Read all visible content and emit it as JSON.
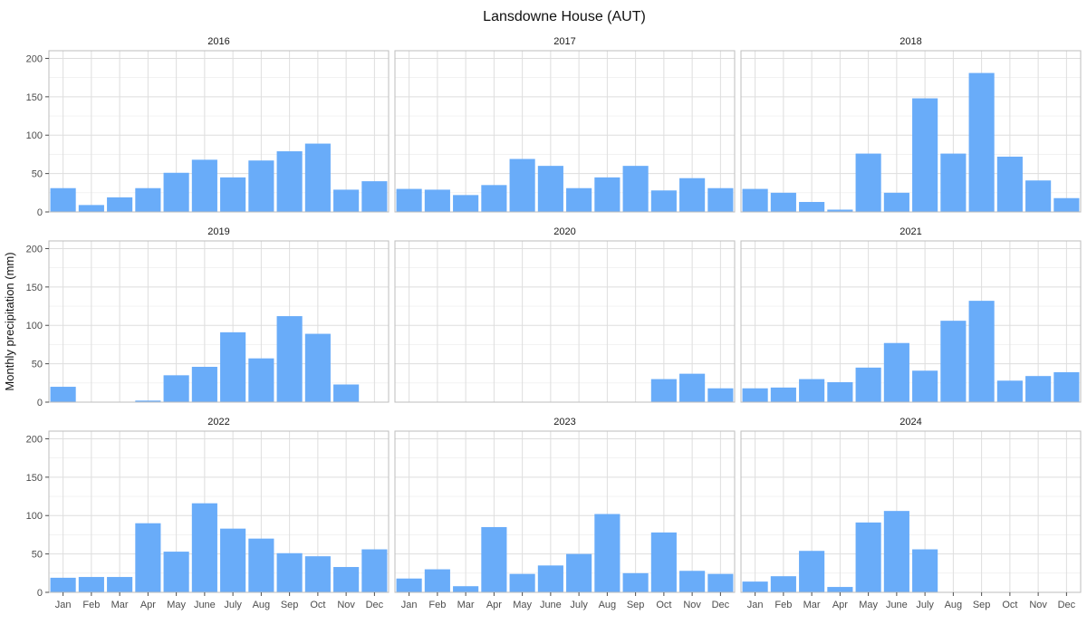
{
  "chart_data": {
    "type": "bar",
    "title": "Lansdowne House (AUT)",
    "xlabel": "",
    "ylabel": "Monthly precipitation (mm)",
    "ylim": [
      0,
      210
    ],
    "yticks": [
      0,
      50,
      100,
      150,
      200
    ],
    "grid": true,
    "bar_color": "#69acf9",
    "categories": [
      "Jan",
      "Feb",
      "Mar",
      "Apr",
      "May",
      "June",
      "July",
      "Aug",
      "Sep",
      "Oct",
      "Nov",
      "Dec"
    ],
    "panels": [
      {
        "name": "2016",
        "values": [
          31,
          9,
          19,
          31,
          51,
          68,
          45,
          67,
          79,
          89,
          29,
          40
        ]
      },
      {
        "name": "2017",
        "values": [
          30,
          29,
          22,
          35,
          69,
          60,
          31,
          45,
          60,
          28,
          44,
          31
        ]
      },
      {
        "name": "2018",
        "values": [
          30,
          25,
          13,
          3,
          76,
          25,
          148,
          76,
          181,
          72,
          41,
          18
        ]
      },
      {
        "name": "2019",
        "values": [
          20,
          null,
          null,
          2,
          35,
          46,
          91,
          57,
          112,
          89,
          23,
          null
        ]
      },
      {
        "name": "2020",
        "values": [
          null,
          null,
          null,
          null,
          null,
          null,
          null,
          null,
          null,
          30,
          37,
          18
        ]
      },
      {
        "name": "2021",
        "values": [
          18,
          19,
          30,
          26,
          45,
          77,
          41,
          106,
          132,
          28,
          34,
          39
        ]
      },
      {
        "name": "2022",
        "values": [
          19,
          20,
          20,
          90,
          53,
          116,
          83,
          70,
          51,
          47,
          33,
          56
        ]
      },
      {
        "name": "2023",
        "values": [
          18,
          30,
          8,
          85,
          24,
          35,
          50,
          102,
          25,
          78,
          28,
          24
        ]
      },
      {
        "name": "2024",
        "values": [
          14,
          21,
          54,
          7,
          91,
          106,
          56,
          null,
          null,
          null,
          null,
          null
        ]
      }
    ]
  }
}
